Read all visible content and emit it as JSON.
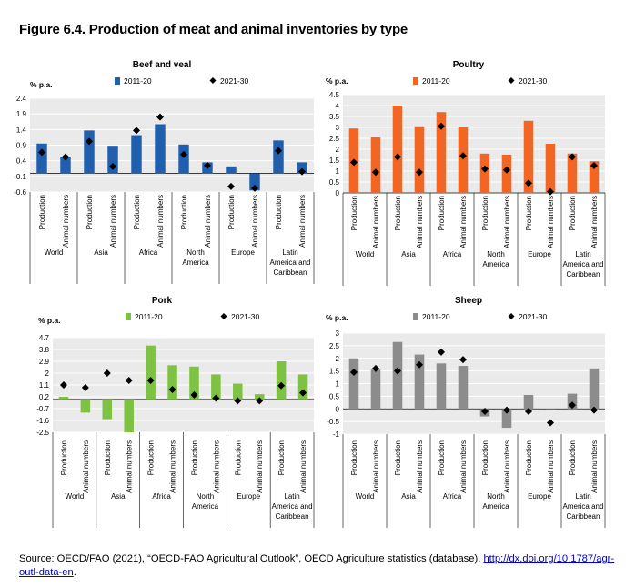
{
  "figure": {
    "title": "Figure 6.4. Production of meat and animal inventories by type",
    "source_text": "Source: OECD/FAO (2021), “OECD-FAO Agricultural Outlook”, OECD Agriculture statistics (database), ",
    "source_link": "http://dx.doi.org/10.1787/agr-outl-data-en",
    "source_end": "."
  },
  "colors": {
    "beef": "#1f5fad",
    "poultry": "#f26522",
    "pork": "#7dc242",
    "sheep": "#8c8c8c",
    "marker": "#000000"
  },
  "chart_data": [
    {
      "type": "bar",
      "title": "Beef and veal",
      "ylabel": "% p.a.",
      "ylim": [
        -0.6,
        2.4
      ],
      "yticks": [
        "2.4",
        "1.9",
        "1.4",
        "0.9",
        "0.4",
        "-0.1",
        "-0.6"
      ],
      "categories": [
        "Production",
        "Animal numbers",
        "Production",
        "Animal numbers",
        "Production",
        "Animal numbers",
        "Production",
        "Animal numbers",
        "Production",
        "Animal numbers",
        "Production",
        "Animal numbers"
      ],
      "groups": [
        "World",
        "Asia",
        "Africa",
        "North America",
        "Europe",
        "Latin America and Caribbean"
      ],
      "series": [
        {
          "name": "2011-20",
          "kind": "bar",
          "values": [
            0.95,
            0.52,
            1.37,
            0.88,
            1.22,
            1.57,
            0.92,
            0.35,
            0.22,
            -0.55,
            1.05,
            0.35
          ]
        },
        {
          "name": "2021-30",
          "kind": "marker",
          "values": [
            0.67,
            0.52,
            1.02,
            0.22,
            1.37,
            1.8,
            0.6,
            0.25,
            -0.42,
            -0.48,
            0.72,
            0.05
          ]
        }
      ]
    },
    {
      "type": "bar",
      "title": "Poultry",
      "ylabel": "% p.a.",
      "ylim": [
        0,
        4.5
      ],
      "yticks": [
        "4.5",
        "4",
        "3.5",
        "3",
        "2.5",
        "2",
        "1.5",
        "1",
        "0.5",
        "0"
      ],
      "categories": [
        "Production",
        "Animal numbers",
        "Production",
        "Animal numbers",
        "Production",
        "Animal numbers",
        "Production",
        "Animal numbers",
        "Production",
        "Animal numbers",
        "Production",
        "Animal numbers"
      ],
      "groups": [
        "World",
        "Asia",
        "Africa",
        "North America",
        "Europe",
        "Latin America and Caribbean"
      ],
      "series": [
        {
          "name": "2011-20",
          "kind": "bar",
          "values": [
            2.95,
            2.55,
            4.0,
            3.05,
            3.7,
            3.0,
            1.8,
            1.75,
            3.3,
            2.25,
            1.8,
            1.45
          ]
        },
        {
          "name": "2021-30",
          "kind": "marker",
          "values": [
            1.4,
            0.95,
            1.65,
            0.95,
            3.05,
            1.7,
            1.1,
            1.05,
            0.45,
            0.05,
            1.65,
            1.25
          ]
        }
      ]
    },
    {
      "type": "bar",
      "title": "Pork",
      "ylabel": "% p.a.",
      "ylim": [
        -2.5,
        4.7
      ],
      "yticks": [
        "4.7",
        "3.8",
        "2.9",
        "2",
        "1.1",
        "0.2",
        "-0.7",
        "-1.6",
        "-2.5"
      ],
      "categories": [
        "Production",
        "Animal numbers",
        "Production",
        "Animal numbers",
        "Production",
        "Animal numbers",
        "Production",
        "Animal numbers",
        "Production",
        "Animal numbers",
        "Production",
        "Animal numbers"
      ],
      "groups": [
        "World",
        "Asia",
        "Africa",
        "North America",
        "Europe",
        "Latin America and Caribbean"
      ],
      "series": [
        {
          "name": "2011-20",
          "kind": "bar",
          "values": [
            0.2,
            -1.0,
            -1.5,
            -2.5,
            4.1,
            2.6,
            2.5,
            1.9,
            1.2,
            0.4,
            2.9,
            1.9
          ]
        },
        {
          "name": "2021-30",
          "kind": "marker",
          "values": [
            1.1,
            0.9,
            2.0,
            1.45,
            1.45,
            0.75,
            0.35,
            0.1,
            -0.1,
            -0.1,
            1.05,
            0.5
          ]
        }
      ]
    },
    {
      "type": "bar",
      "title": "Sheep",
      "ylabel": "% p.a.",
      "ylim": [
        -1,
        3
      ],
      "yticks": [
        "3",
        "2.5",
        "2",
        "1.5",
        "1",
        "0.5",
        "0",
        "-0.5",
        "-1"
      ],
      "categories": [
        "Production",
        "Animal numbers",
        "Production",
        "Animal numbers",
        "Production",
        "Animal numbers",
        "Production",
        "Animal numbers",
        "Production",
        "Animal numbers",
        "Production",
        "Animal numbers"
      ],
      "groups": [
        "World",
        "Asia",
        "Africa",
        "North America",
        "Europe",
        "Latin America and Caribbean"
      ],
      "series": [
        {
          "name": "2011-20",
          "kind": "bar",
          "values": [
            2.0,
            1.55,
            2.65,
            2.15,
            1.8,
            1.7,
            -0.3,
            -0.75,
            0.55,
            -0.05,
            0.6,
            1.6
          ]
        },
        {
          "name": "2021-30",
          "kind": "marker",
          "values": [
            1.45,
            1.6,
            1.5,
            1.75,
            2.25,
            1.95,
            -0.1,
            -0.05,
            -0.1,
            -0.55,
            0.15,
            -0.05
          ]
        }
      ]
    }
  ]
}
